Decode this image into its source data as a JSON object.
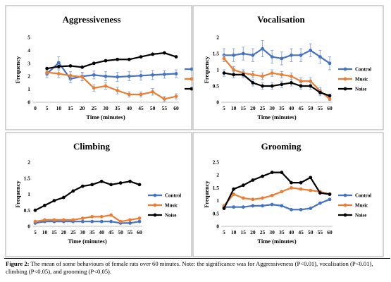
{
  "caption": {
    "label": "Figure 2:",
    "text": " The mean of some behaviours of female rats over 60 minutes. Note: the significance was for Aggressiveness (P<0.01), vocalisation (P<0.01), climbing (P<0.05), and grooming (P<0.05)."
  },
  "colors": {
    "Control": "#4472C4",
    "Music": "#ED7D31",
    "Noise": "#000000",
    "errorbar": "#8FAADC"
  },
  "chart_data": [
    {
      "type": "line",
      "title": "Aggressiveness",
      "xlabel": "Time (minutes)",
      "ylabel": "Frequency",
      "x_ticks": [
        "0",
        "5",
        "10",
        "15",
        "20",
        "25",
        "30",
        "35",
        "40",
        "45",
        "50",
        "55",
        "60"
      ],
      "y_ticks": [
        "0",
        "1",
        "2",
        "3",
        "4",
        "5"
      ],
      "ylim": [
        0,
        5
      ],
      "legend": "right",
      "x": [
        5,
        10,
        15,
        20,
        25,
        30,
        35,
        40,
        45,
        50,
        55,
        60
      ],
      "series": [
        {
          "name": "Control",
          "values": [
            2.2,
            3.05,
            1.8,
            2.0,
            2.1,
            2.0,
            1.95,
            2.0,
            2.05,
            2.1,
            2.15,
            2.2
          ],
          "errors": [
            0.3,
            0.45,
            0.3,
            0.3,
            0.3,
            0.35,
            0.35,
            0.35,
            0.35,
            0.35,
            0.3,
            0.3
          ]
        },
        {
          "name": "Music",
          "values": [
            2.3,
            2.2,
            2.05,
            1.95,
            1.1,
            1.25,
            0.9,
            0.6,
            0.6,
            0.8,
            0.25,
            0.45
          ],
          "errors": [
            0.25,
            0.3,
            0.3,
            0.3,
            0.25,
            0.25,
            0.25,
            0.2,
            0.2,
            0.25,
            0.2,
            0.2
          ]
        },
        {
          "name": "Noise",
          "values": [
            2.6,
            2.75,
            2.8,
            2.7,
            3.0,
            3.2,
            3.3,
            3.3,
            3.5,
            3.7,
            3.8,
            3.5
          ],
          "errors": []
        }
      ]
    },
    {
      "type": "line",
      "title": "Vocalisation",
      "xlabel": "Time (minutes)",
      "ylabel": "Frequency",
      "x_ticks": [
        "5",
        "10",
        "15",
        "20",
        "25",
        "30",
        "35",
        "40",
        "45",
        "50",
        "55",
        "60"
      ],
      "y_ticks": [
        "0",
        "0.5",
        "1",
        "1.5",
        "2"
      ],
      "ylim": [
        0,
        2
      ],
      "legend": "right",
      "x": [
        5,
        10,
        15,
        20,
        25,
        30,
        35,
        40,
        45,
        50,
        55,
        60
      ],
      "series": [
        {
          "name": "Control",
          "values": [
            1.45,
            1.45,
            1.5,
            1.45,
            1.65,
            1.4,
            1.35,
            1.45,
            1.45,
            1.6,
            1.4,
            1.2
          ],
          "errors": [
            0.2,
            0.2,
            0.2,
            0.2,
            0.25,
            0.2,
            0.2,
            0.2,
            0.2,
            0.2,
            0.2,
            0.2
          ]
        },
        {
          "name": "Music",
          "values": [
            1.35,
            1.0,
            0.9,
            0.85,
            0.8,
            0.9,
            0.85,
            0.8,
            0.65,
            0.65,
            0.35,
            0.1
          ],
          "errors": [
            0.1,
            0.1,
            0.1,
            0.1,
            0.1,
            0.1,
            0.1,
            0.1,
            0.1,
            0.1,
            0.1,
            0.05
          ]
        },
        {
          "name": "Noise",
          "values": [
            0.9,
            0.85,
            0.85,
            0.6,
            0.5,
            0.5,
            0.55,
            0.6,
            0.5,
            0.5,
            0.3,
            0.2
          ],
          "errors": [
            0.1,
            0.1,
            0.1,
            0.1,
            0.1,
            0.1,
            0.1,
            0.1,
            0.1,
            0.1,
            0.1,
            0.05
          ]
        }
      ]
    },
    {
      "type": "line",
      "title": "Climbing",
      "xlabel": "Time (minutes)",
      "ylabel": "Frequency",
      "x_ticks": [
        "5",
        "10",
        "15",
        "20",
        "25",
        "30",
        "35",
        "40",
        "45",
        "50",
        "55",
        "60"
      ],
      "y_ticks": [
        "0",
        "0.5",
        "1",
        "1.5",
        "2"
      ],
      "ylim": [
        0,
        2
      ],
      "legend": "right",
      "x": [
        5,
        10,
        15,
        20,
        25,
        30,
        35,
        40,
        45,
        50,
        55,
        60
      ],
      "series": [
        {
          "name": "Control",
          "values": [
            0.1,
            0.15,
            0.15,
            0.15,
            0.15,
            0.15,
            0.15,
            0.15,
            0.15,
            0.1,
            0.1,
            0.15
          ],
          "errors": []
        },
        {
          "name": "Music",
          "values": [
            0.15,
            0.2,
            0.2,
            0.2,
            0.2,
            0.25,
            0.3,
            0.3,
            0.35,
            0.15,
            0.2,
            0.25
          ],
          "errors": []
        },
        {
          "name": "Noise",
          "values": [
            0.5,
            0.65,
            0.8,
            0.9,
            1.1,
            1.25,
            1.3,
            1.4,
            1.3,
            1.35,
            1.4,
            1.3
          ],
          "errors": []
        }
      ]
    },
    {
      "type": "line",
      "title": "Grooming",
      "xlabel": "Time (minutes)",
      "ylabel": "Frequency",
      "x_ticks": [
        "5",
        "10",
        "15",
        "20",
        "25",
        "30",
        "35",
        "40",
        "45",
        "50",
        "55",
        "60"
      ],
      "y_ticks": [
        "0",
        "0.5",
        "1",
        "1.5",
        "2",
        "2.5"
      ],
      "ylim": [
        0,
        2.5
      ],
      "legend": "right",
      "x": [
        5,
        10,
        15,
        20,
        25,
        30,
        35,
        40,
        45,
        50,
        55,
        60
      ],
      "series": [
        {
          "name": "Control",
          "values": [
            0.75,
            0.75,
            0.75,
            0.8,
            0.8,
            0.85,
            0.8,
            0.65,
            0.65,
            0.7,
            0.9,
            1.05
          ],
          "errors": []
        },
        {
          "name": "Music",
          "values": [
            0.8,
            1.25,
            1.1,
            1.05,
            1.1,
            1.2,
            1.35,
            1.5,
            1.45,
            1.4,
            1.35,
            1.25
          ],
          "errors": []
        },
        {
          "name": "Noise",
          "values": [
            0.7,
            1.45,
            1.6,
            1.8,
            1.95,
            2.1,
            2.1,
            1.7,
            1.7,
            1.9,
            1.3,
            1.25
          ],
          "errors": []
        }
      ]
    }
  ]
}
